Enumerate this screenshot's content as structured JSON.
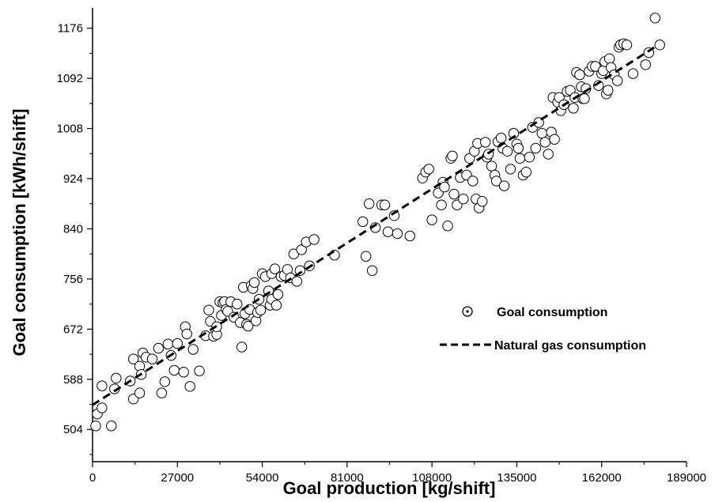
{
  "chart_data": {
    "type": "scatter",
    "xlabel": "Goal production [kg/shift]",
    "ylabel": "Goal consumption [kWh/shift]",
    "xlim": [
      0,
      189000
    ],
    "ylim": [
      450,
      1210
    ],
    "x_ticks": [
      0,
      27000,
      54000,
      81000,
      108000,
      135000,
      162000,
      189000
    ],
    "y_ticks": [
      504,
      588,
      672,
      756,
      840,
      924,
      1008,
      1092,
      1176
    ],
    "x_tick_labels": [
      "0",
      "27000",
      "54000",
      "81000",
      "108000",
      "135000",
      "162000",
      "189000"
    ],
    "y_tick_labels": [
      "504",
      "588",
      "672",
      "756",
      "840",
      "924",
      "1008",
      "1092",
      "1176"
    ],
    "grid": false,
    "legend_position": "middle-right",
    "series": [
      {
        "name": "Goal consumption",
        "kind": "scatter",
        "marker": "open-circle",
        "points": [
          [
            1000,
            510
          ],
          [
            1500,
            530
          ],
          [
            3000,
            540
          ],
          [
            3000,
            577
          ],
          [
            6000,
            510
          ],
          [
            7000,
            572
          ],
          [
            7500,
            590
          ],
          [
            12000,
            585
          ],
          [
            13000,
            555
          ],
          [
            13000,
            622
          ],
          [
            15000,
            565
          ],
          [
            15000,
            610
          ],
          [
            15500,
            596
          ],
          [
            16000,
            632
          ],
          [
            17000,
            625
          ],
          [
            19000,
            622
          ],
          [
            21000,
            640
          ],
          [
            22000,
            565
          ],
          [
            23000,
            584
          ],
          [
            24000,
            647
          ],
          [
            25000,
            628
          ],
          [
            26000,
            603
          ],
          [
            27000,
            648
          ],
          [
            29000,
            600
          ],
          [
            29500,
            676
          ],
          [
            30000,
            664
          ],
          [
            31000,
            576
          ],
          [
            32000,
            638
          ],
          [
            34000,
            602
          ],
          [
            36000,
            661
          ],
          [
            37000,
            704
          ],
          [
            37500,
            685
          ],
          [
            38500,
            660
          ],
          [
            39500,
            663
          ],
          [
            39500,
            676
          ],
          [
            40500,
            718
          ],
          [
            41000,
            695
          ],
          [
            41500,
            716
          ],
          [
            42000,
            718
          ],
          [
            42500,
            705
          ],
          [
            43000,
            702
          ],
          [
            44000,
            718
          ],
          [
            45000,
            692
          ],
          [
            46000,
            714
          ],
          [
            47000,
            683
          ],
          [
            47500,
            642
          ],
          [
            48000,
            742
          ],
          [
            48500,
            698
          ],
          [
            49000,
            680
          ],
          [
            49500,
            677
          ],
          [
            50000,
            705
          ],
          [
            50500,
            745
          ],
          [
            51000,
            740
          ],
          [
            51500,
            750
          ],
          [
            52000,
            686
          ],
          [
            52500,
            700
          ],
          [
            53000,
            722
          ],
          [
            53500,
            704
          ],
          [
            54000,
            765
          ],
          [
            55000,
            760
          ],
          [
            56000,
            736
          ],
          [
            56500,
            712
          ],
          [
            57000,
            722
          ],
          [
            57000,
            765
          ],
          [
            58000,
            773
          ],
          [
            58500,
            712
          ],
          [
            59000,
            730
          ],
          [
            60000,
            760
          ],
          [
            61000,
            762
          ],
          [
            62000,
            772
          ],
          [
            63000,
            758
          ],
          [
            64000,
            798
          ],
          [
            65000,
            752
          ],
          [
            66000,
            770
          ],
          [
            66500,
            805
          ],
          [
            68000,
            818
          ],
          [
            69000,
            778
          ],
          [
            70500,
            822
          ],
          [
            77000,
            796
          ],
          [
            86000,
            852
          ],
          [
            87000,
            794
          ],
          [
            88000,
            882
          ],
          [
            89000,
            770
          ],
          [
            90000,
            842
          ],
          [
            92000,
            880
          ],
          [
            93000,
            880
          ],
          [
            94000,
            835
          ],
          [
            96000,
            862
          ],
          [
            97000,
            832
          ],
          [
            101000,
            828
          ],
          [
            105000,
            925
          ],
          [
            106000,
            935
          ],
          [
            107000,
            940
          ],
          [
            108000,
            855
          ],
          [
            110000,
            900
          ],
          [
            111000,
            880
          ],
          [
            111500,
            918
          ],
          [
            112000,
            910
          ],
          [
            113000,
            845
          ],
          [
            114000,
            958
          ],
          [
            114500,
            962
          ],
          [
            115000,
            898
          ],
          [
            116000,
            880
          ],
          [
            117000,
            926
          ],
          [
            118000,
            890
          ],
          [
            119000,
            930
          ],
          [
            120000,
            958
          ],
          [
            121000,
            920
          ],
          [
            121500,
            970
          ],
          [
            122000,
            890
          ],
          [
            122500,
            983
          ],
          [
            123000,
            875
          ],
          [
            124000,
            886
          ],
          [
            125000,
            985
          ],
          [
            125500,
            960
          ],
          [
            126000,
            965
          ],
          [
            127000,
            945
          ],
          [
            128000,
            930
          ],
          [
            128500,
            920
          ],
          [
            129000,
            986
          ],
          [
            130000,
            992
          ],
          [
            130500,
            975
          ],
          [
            131000,
            912
          ],
          [
            132000,
            970
          ],
          [
            133000,
            940
          ],
          [
            134000,
            1000
          ],
          [
            135000,
            982
          ],
          [
            135500,
            975
          ],
          [
            136000,
            958
          ],
          [
            137000,
            930
          ],
          [
            138000,
            935
          ],
          [
            139000,
            960
          ],
          [
            140000,
            1010
          ],
          [
            141000,
            975
          ],
          [
            142000,
            1018
          ],
          [
            143000,
            1000
          ],
          [
            144000,
            985
          ],
          [
            145000,
            965
          ],
          [
            146000,
            1002
          ],
          [
            146500,
            1060
          ],
          [
            147000,
            990
          ],
          [
            148000,
            1052
          ],
          [
            148500,
            1060
          ],
          [
            149000,
            1038
          ],
          [
            150000,
            1048
          ],
          [
            151000,
            1070
          ],
          [
            152000,
            1072
          ],
          [
            153000,
            1042
          ],
          [
            153500,
            1060
          ],
          [
            154000,
            1102
          ],
          [
            155000,
            1098
          ],
          [
            155500,
            1078
          ],
          [
            156000,
            1058
          ],
          [
            156500,
            1058
          ],
          [
            157000,
            1075
          ],
          [
            158000,
            1104
          ],
          [
            159000,
            1112
          ],
          [
            160000,
            1112
          ],
          [
            161000,
            1080
          ],
          [
            162000,
            1100
          ],
          [
            162500,
            1105
          ],
          [
            163000,
            1120
          ],
          [
            163500,
            1066
          ],
          [
            164000,
            1072
          ],
          [
            164500,
            1125
          ],
          [
            165000,
            1110
          ],
          [
            166000,
            1098
          ],
          [
            167000,
            1088
          ],
          [
            167500,
            1144
          ],
          [
            168000,
            1148
          ],
          [
            169000,
            1150
          ],
          [
            170000,
            1148
          ],
          [
            172000,
            1100
          ],
          [
            176000,
            1115
          ],
          [
            177000,
            1135
          ],
          [
            179000,
            1193
          ],
          [
            180500,
            1148
          ]
        ]
      },
      {
        "name": "Natural gas consumption",
        "kind": "line",
        "style": "dashed",
        "points": [
          [
            0,
            545
          ],
          [
            180000,
            1148
          ]
        ]
      }
    ]
  }
}
